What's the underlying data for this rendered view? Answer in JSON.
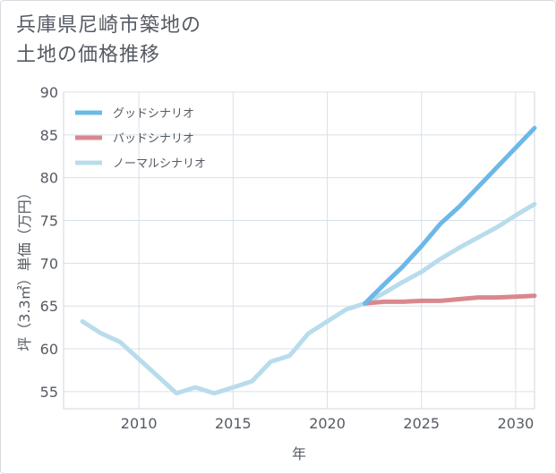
{
  "title": {
    "line1": "兵庫県尼崎市築地の",
    "line2": "土地の価格推移"
  },
  "chart_data": {
    "type": "line",
    "title": "兵庫県尼崎市築地の土地の価格推移",
    "xlabel": "年",
    "ylabel": "坪（3.3㎡）単価（万円）",
    "xlim": [
      2006,
      2031
    ],
    "ylim": [
      53,
      90
    ],
    "xticks": [
      2010,
      2015,
      2020,
      2025,
      2030
    ],
    "yticks": [
      55,
      60,
      65,
      70,
      75,
      80,
      85,
      90
    ],
    "grid": true,
    "legend_position": "top-left",
    "series": [
      {
        "name": "グッドシナリオ",
        "color": "#6cb8e8",
        "x": [
          2022,
          2023,
          2024,
          2025,
          2026,
          2027,
          2028,
          2029,
          2030,
          2031
        ],
        "y": [
          65.3,
          67.5,
          69.6,
          72.0,
          74.6,
          76.6,
          78.9,
          81.2,
          83.5,
          85.8
        ]
      },
      {
        "name": "バッドシナリオ",
        "color": "#d9888e",
        "x": [
          2022,
          2023,
          2024,
          2025,
          2026,
          2027,
          2028,
          2029,
          2030,
          2031
        ],
        "y": [
          65.3,
          65.5,
          65.5,
          65.6,
          65.6,
          65.8,
          66.0,
          66.0,
          66.1,
          66.2
        ]
      },
      {
        "name": "ノーマルシナリオ",
        "color": "#b9dcec",
        "x": [
          2007,
          2008,
          2009,
          2010,
          2011,
          2012,
          2013,
          2014,
          2015,
          2016,
          2017,
          2018,
          2019,
          2020,
          2021,
          2022,
          2023,
          2024,
          2025,
          2026,
          2027,
          2028,
          2029,
          2030,
          2031
        ],
        "y": [
          63.2,
          61.8,
          60.8,
          58.8,
          56.8,
          54.8,
          55.5,
          54.8,
          55.5,
          56.2,
          58.5,
          59.2,
          61.8,
          63.2,
          64.6,
          65.3,
          66.5,
          67.8,
          69.0,
          70.5,
          71.8,
          73.0,
          74.2,
          75.6,
          76.9
        ]
      }
    ]
  }
}
